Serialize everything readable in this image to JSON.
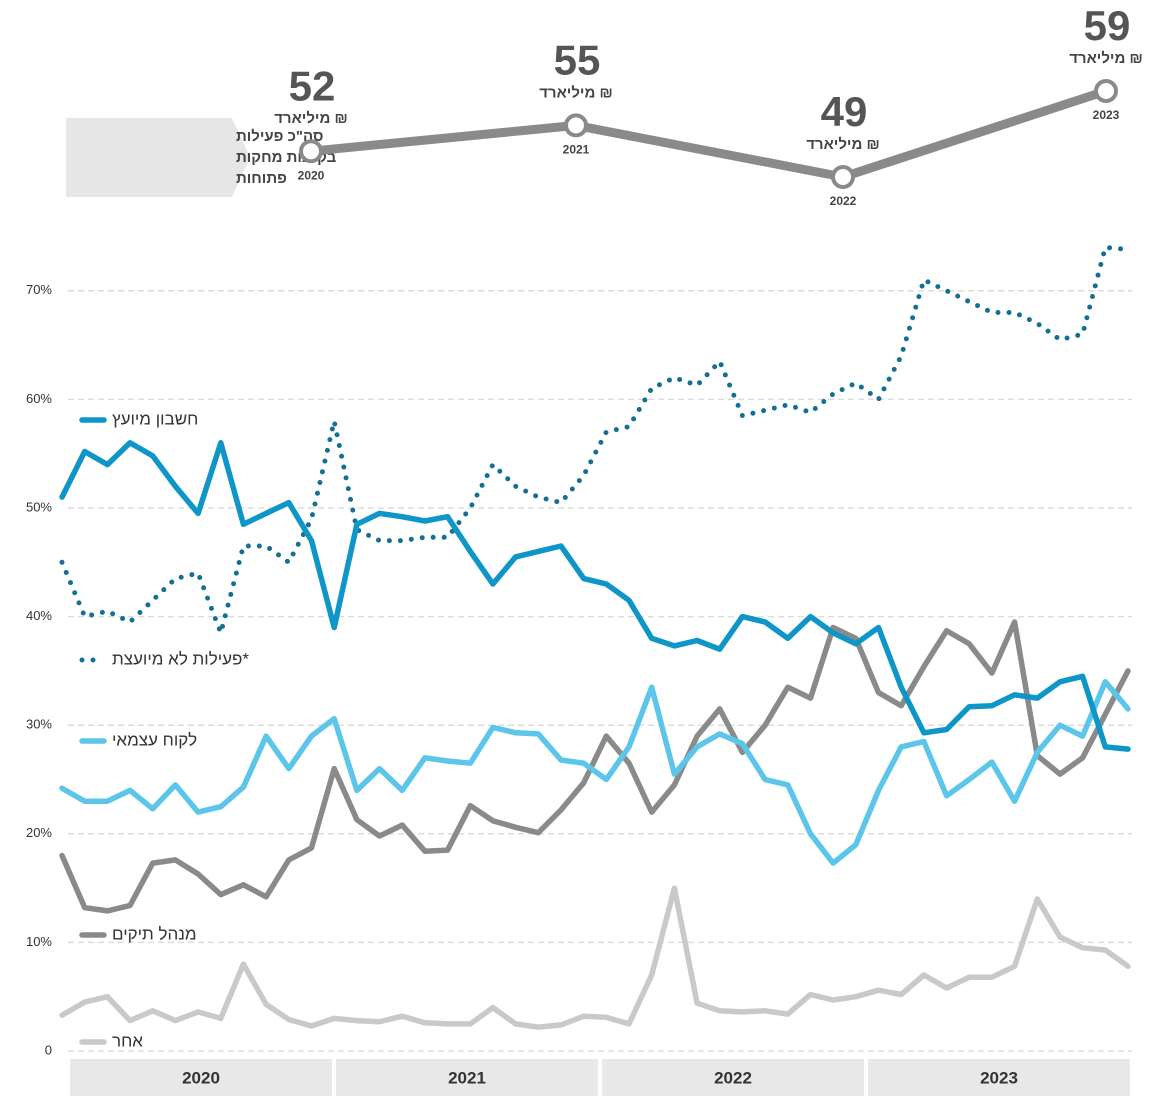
{
  "chart_data": {
    "type": "line",
    "ylim": [
      0,
      77
    ],
    "yticks": [
      0,
      {
        "value": 10,
        "label": "10%"
      },
      {
        "value": 20,
        "label": "20%"
      },
      {
        "value": 30,
        "label": "30%"
      },
      {
        "value": 40,
        "label": "40%"
      },
      {
        "value": 50,
        "label": "50%"
      },
      {
        "value": 60,
        "label": "60%"
      },
      {
        "value": 70,
        "label": "70%"
      }
    ],
    "grid": true,
    "years": [
      "2020",
      "2021",
      "2022",
      "2023"
    ],
    "series": [
      {
        "name": "חשבון מיועץ",
        "color": "#0e96c8",
        "style": "solid",
        "values": [
          51,
          55.2,
          54,
          56,
          54.8,
          52,
          49.5,
          56,
          48.5,
          49.5,
          50.5,
          47,
          39,
          48.5,
          49.5,
          49.2,
          48.8,
          49.2,
          46,
          43,
          45.5,
          46,
          46.5,
          43.5,
          43,
          41.5,
          38,
          37.3,
          37.8,
          37,
          40,
          39.5,
          38,
          40,
          38.5,
          37.5,
          39,
          33.5,
          29.3,
          29.6,
          31.7,
          31.8,
          32.8,
          32.5,
          34,
          34.5,
          28,
          27.8
        ]
      },
      {
        "name": "פעילות לא מיועצת*",
        "color": "#136f93",
        "style": "dotted",
        "values": [
          45,
          40,
          40.5,
          39.5,
          41.5,
          43.5,
          44,
          38.5,
          46.5,
          46.5,
          45,
          49,
          58,
          48,
          47,
          47,
          47.3,
          47.3,
          50,
          54,
          52,
          51,
          50.5,
          53,
          57,
          57.5,
          61,
          62,
          61.3,
          63.5,
          58.5,
          59,
          59.5,
          58.8,
          60.5,
          61.5,
          60,
          64,
          71,
          70,
          69,
          68,
          68,
          67,
          65.5,
          66,
          74,
          73.8
        ]
      },
      {
        "name": "לקוח עצמאי",
        "color": "#5bc6ea",
        "style": "solid",
        "values": [
          24.2,
          23,
          23,
          24,
          22.3,
          24.5,
          22,
          22.5,
          24.3,
          29,
          26,
          29,
          30.6,
          24,
          26,
          24,
          27,
          26.7,
          26.5,
          29.8,
          29.3,
          29.2,
          26.8,
          26.5,
          25,
          28,
          33.5,
          25.5,
          28,
          29.2,
          28.3,
          25,
          24.5,
          20,
          17.3,
          19,
          24,
          28,
          28.5,
          23.5,
          25,
          26.6,
          23,
          27.5,
          30,
          29,
          34,
          31.5
        ]
      },
      {
        "name": "מנהל תיקים",
        "color": "#8a8a8a",
        "style": "solid",
        "values": [
          18,
          13.2,
          12.9,
          13.4,
          17.3,
          17.6,
          16.3,
          14.4,
          15.3,
          14.2,
          17.6,
          18.7,
          26,
          21.3,
          19.8,
          20.8,
          18.4,
          18.5,
          22.6,
          21.2,
          20.6,
          20.1,
          22.2,
          24.7,
          29,
          26.5,
          22,
          24.5,
          29,
          31.5,
          27.5,
          30,
          33.5,
          32.5,
          39,
          38,
          33,
          31.8,
          35.4,
          38.7,
          37.5,
          34.8,
          39.5,
          27.2,
          25.5,
          27,
          31,
          35
        ]
      },
      {
        "name": "אחר",
        "color": "#c9c9c9",
        "style": "solid",
        "values": [
          3.3,
          4.5,
          5,
          2.8,
          3.7,
          2.8,
          3.6,
          3,
          8,
          4.3,
          2.9,
          2.3,
          3,
          2.8,
          2.7,
          3.2,
          2.6,
          2.5,
          2.5,
          4,
          2.5,
          2.2,
          2.4,
          3.2,
          3.1,
          2.5,
          7,
          15,
          4.4,
          3.7,
          3.6,
          3.7,
          3.4,
          5.2,
          4.7,
          5,
          5.6,
          5.2,
          7,
          5.8,
          6.8,
          6.8,
          7.8,
          14,
          10.5,
          9.5,
          9.3,
          7.8
        ]
      }
    ],
    "summary": {
      "label": [
        "סה\"כ פעילות",
        "בקרנות מחקות",
        "פתוחות"
      ],
      "unit": "מיליארד ₪",
      "years": [
        "2020",
        "2021",
        "2022",
        "2023"
      ],
      "values": [
        52,
        55,
        49,
        59
      ],
      "color": "#8a8a8a"
    }
  }
}
